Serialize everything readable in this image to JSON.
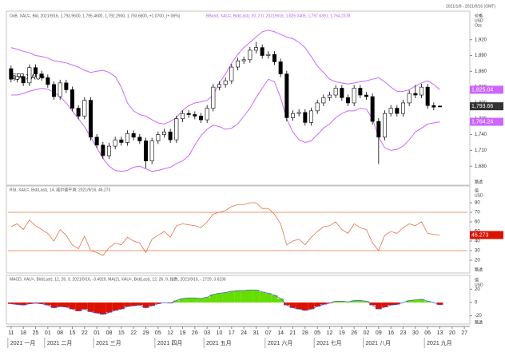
{
  "header": {
    "instrument": "每天 XAU=",
    "range": "2021/1/8 - 2021/9/16 (GMT)"
  },
  "chart_data": [
    {
      "type": "candlestick",
      "subtitle": "OxB, XAU=, Bid, 2021/9/16, 1,793.9600, 1,795.4600, 1,792.2900, 1,793.6600, +1.0700, (+.06%)",
      "overlay_label": "BBand, XAU=, Bid(Last), 20, 2.0, 2021/9/16, 1,825.0405, 1,797.6391, 1,764.2378",
      "axis_title": [
        "价格",
        "USD",
        "Ozs"
      ],
      "source": "路透",
      "open": [
        1865,
        1845,
        1850,
        1838,
        1867,
        1855,
        1848,
        1835,
        1812,
        1838,
        1825,
        1790,
        1775,
        1805,
        1735,
        1720,
        1700,
        1718,
        1730,
        1725,
        1742,
        1735,
        1728,
        1690,
        1728,
        1740,
        1745,
        1730,
        1770,
        1780,
        1778,
        1775,
        1768,
        1790,
        1830,
        1835,
        1842,
        1868,
        1880,
        1882,
        1900,
        1905,
        1890,
        1892,
        1878,
        1855,
        1772,
        1780,
        1782,
        1763,
        1785,
        1800,
        1810,
        1815,
        1828,
        1810,
        1800,
        1828,
        1815,
        1812,
        1765,
        1735,
        1780,
        1790,
        1780,
        1800,
        1818,
        1815,
        1830,
        1795,
        1793.96
      ],
      "high": [
        1871,
        1856,
        1856,
        1873,
        1873,
        1861,
        1854,
        1841,
        1844,
        1844,
        1831,
        1796,
        1811,
        1811,
        1741,
        1726,
        1724,
        1736,
        1736,
        1748,
        1748,
        1741,
        1734,
        1734,
        1746,
        1751,
        1751,
        1776,
        1786,
        1786,
        1784,
        1781,
        1796,
        1836,
        1841,
        1848,
        1874,
        1886,
        1888,
        1906,
        1916,
        1911,
        1898,
        1898,
        1884,
        1861,
        1786,
        1788,
        1788,
        1791,
        1806,
        1816,
        1821,
        1834,
        1834,
        1816,
        1834,
        1834,
        1821,
        1818,
        1771,
        1786,
        1796,
        1796,
        1806,
        1824,
        1834,
        1836,
        1836,
        1801,
        1795.46
      ],
      "low": [
        1839,
        1839,
        1832,
        1832,
        1849,
        1842,
        1829,
        1806,
        1806,
        1819,
        1784,
        1769,
        1769,
        1729,
        1714,
        1694,
        1694,
        1712,
        1719,
        1719,
        1729,
        1722,
        1676,
        1684,
        1722,
        1734,
        1724,
        1724,
        1764,
        1772,
        1769,
        1762,
        1762,
        1784,
        1824,
        1829,
        1836,
        1862,
        1874,
        1876,
        1894,
        1884,
        1884,
        1872,
        1849,
        1765,
        1766,
        1774,
        1757,
        1757,
        1779,
        1794,
        1804,
        1809,
        1804,
        1794,
        1794,
        1809,
        1806,
        1759,
        1684,
        1729,
        1774,
        1774,
        1774,
        1794,
        1809,
        1809,
        1789,
        1786,
        1792.29
      ],
      "close": [
        1845,
        1850,
        1838,
        1867,
        1855,
        1848,
        1835,
        1812,
        1838,
        1825,
        1790,
        1775,
        1805,
        1735,
        1720,
        1700,
        1718,
        1730,
        1725,
        1742,
        1735,
        1728,
        1690,
        1728,
        1740,
        1745,
        1730,
        1770,
        1780,
        1778,
        1775,
        1768,
        1790,
        1830,
        1835,
        1842,
        1868,
        1880,
        1882,
        1900,
        1905,
        1890,
        1892,
        1878,
        1855,
        1772,
        1780,
        1782,
        1763,
        1785,
        1800,
        1810,
        1815,
        1828,
        1810,
        1800,
        1828,
        1815,
        1812,
        1765,
        1735,
        1780,
        1790,
        1780,
        1800,
        1818,
        1815,
        1830,
        1795,
        1792,
        1793.66
      ],
      "color_up": "#ffffff",
      "color_down": "#000000",
      "last_label": "1,793.66",
      "bands": {
        "color": "#cc66ff",
        "upper_label": "1,825.04",
        "lower_label": "1,764.24",
        "upper": [
          1905,
          1902,
          1898,
          1895,
          1890,
          1888,
          1885,
          1880,
          1878,
          1876,
          1872,
          1868,
          1862,
          1858,
          1860,
          1862,
          1858,
          1850,
          1830,
          1800,
          1785,
          1778,
          1775,
          1768,
          1762,
          1760,
          1765,
          1772,
          1786,
          1795,
          1800,
          1802,
          1805,
          1815,
          1838,
          1855,
          1875,
          1892,
          1905,
          1915,
          1925,
          1935,
          1938,
          1935,
          1930,
          1925,
          1922,
          1915,
          1905,
          1888,
          1870,
          1858,
          1845,
          1840,
          1838,
          1836,
          1838,
          1840,
          1842,
          1845,
          1848,
          1840,
          1830,
          1822,
          1822,
          1825,
          1832,
          1838,
          1842,
          1835,
          1825.04
        ],
        "lower": [
          1815,
          1815,
          1818,
          1822,
          1825,
          1828,
          1826,
          1820,
          1812,
          1800,
          1785,
          1770,
          1755,
          1735,
          1715,
          1695,
          1680,
          1672,
          1670,
          1672,
          1678,
          1680,
          1675,
          1670,
          1672,
          1675,
          1678,
          1685,
          1690,
          1700,
          1720,
          1738,
          1750,
          1758,
          1755,
          1750,
          1752,
          1760,
          1775,
          1790,
          1810,
          1828,
          1845,
          1840,
          1810,
          1770,
          1745,
          1730,
          1725,
          1728,
          1740,
          1752,
          1760,
          1772,
          1780,
          1785,
          1785,
          1790,
          1788,
          1770,
          1735,
          1715,
          1710,
          1712,
          1718,
          1730,
          1745,
          1752,
          1760,
          1762,
          1764.24
        ]
      },
      "ylim": [
        1650,
        1965
      ],
      "yticks": [
        {
          "value": 1680,
          "label": "1,680"
        },
        {
          "value": 1710,
          "label": "1,710"
        },
        {
          "value": 1740,
          "label": "1,740"
        },
        {
          "value": 1770,
          "label": "1,770"
        },
        {
          "value": 1800,
          "label": "1,800"
        },
        {
          "value": 1830,
          "label": "1,830"
        },
        {
          "value": 1860,
          "label": "1,860"
        },
        {
          "value": 1890,
          "label": "1,890"
        },
        {
          "value": 1920,
          "label": "1,920"
        }
      ]
    },
    {
      "type": "line",
      "title": "RSI, XAU=, Bid(Last), 14, 威尔德平滑, 2021/9/16, 46.273",
      "axis_title": [
        "值",
        "USD"
      ],
      "source": "路透",
      "color": "#e8704a",
      "values": [
        55,
        58,
        52,
        62,
        56,
        52,
        48,
        40,
        52,
        46,
        36,
        32,
        45,
        30,
        28,
        25,
        33,
        38,
        36,
        44,
        40,
        38,
        28,
        42,
        46,
        50,
        44,
        56,
        58,
        57,
        56,
        54,
        60,
        68,
        70,
        72,
        76,
        78,
        78,
        80,
        80,
        74,
        74,
        68,
        58,
        36,
        40,
        42,
        36,
        44,
        50,
        55,
        56,
        60,
        52,
        48,
        58,
        54,
        52,
        38,
        30,
        46,
        50,
        48,
        54,
        58,
        56,
        60,
        48,
        47,
        46.273
      ],
      "last_label": "46.273",
      "levels": [
        30,
        70
      ],
      "ylim": [
        10,
        90
      ],
      "yticks": [
        20,
        30,
        40,
        50,
        60,
        70,
        80
      ]
    },
    {
      "type": "bar",
      "title": "MACD, XAU=, Bid(Last), 12, 26, 9, 2021/9/16, -3.4929, MA(2), XAU=, Bid(Last), 12, 26, 9, 指数, 2021/9/16, -.1729, 3.6236",
      "axis_title": [
        "值",
        "USD"
      ],
      "source": "路透",
      "color_pos": "#66dd00",
      "color_neg": "#dd1100",
      "values": [
        -2,
        -3,
        -4,
        -2,
        -1,
        -2,
        -4,
        -8,
        -6,
        -7,
        -10,
        -13,
        -10,
        -14,
        -16,
        -18,
        -15,
        -12,
        -10,
        -6,
        -5,
        -4,
        -8,
        -5,
        -2,
        0,
        -1,
        3,
        6,
        7,
        7,
        6,
        8,
        12,
        14,
        15,
        17,
        18,
        18,
        19,
        19,
        16,
        14,
        11,
        6,
        -4,
        -8,
        -10,
        -12,
        -10,
        -6,
        -3,
        -1,
        2,
        2,
        1,
        3,
        3,
        2,
        -4,
        -10,
        -7,
        -4,
        -3,
        0,
        3,
        4,
        5,
        2,
        0,
        -3.4929
      ],
      "ylim": [
        -30,
        30
      ],
      "yticks": [
        -20,
        0,
        20
      ]
    }
  ],
  "x_axis": {
    "ticks": [
      "11",
      "18",
      "25",
      "01",
      "08",
      "15",
      "22",
      "01",
      "08",
      "15",
      "22",
      "29",
      "05",
      "12",
      "19",
      "26",
      "03",
      "10",
      "17",
      "24",
      "31",
      "07",
      "14",
      "21",
      "28",
      "05",
      "12",
      "19",
      "26",
      "02",
      "09",
      "16",
      "23",
      "30",
      "06",
      "13",
      "20",
      "27"
    ],
    "months": [
      "2021 一月",
      "2021 二月",
      "2021 三月",
      "2021 四月",
      "2021 五月",
      "2021 六月",
      "2021 七月",
      "2021 八月",
      "2021 九月"
    ]
  }
}
